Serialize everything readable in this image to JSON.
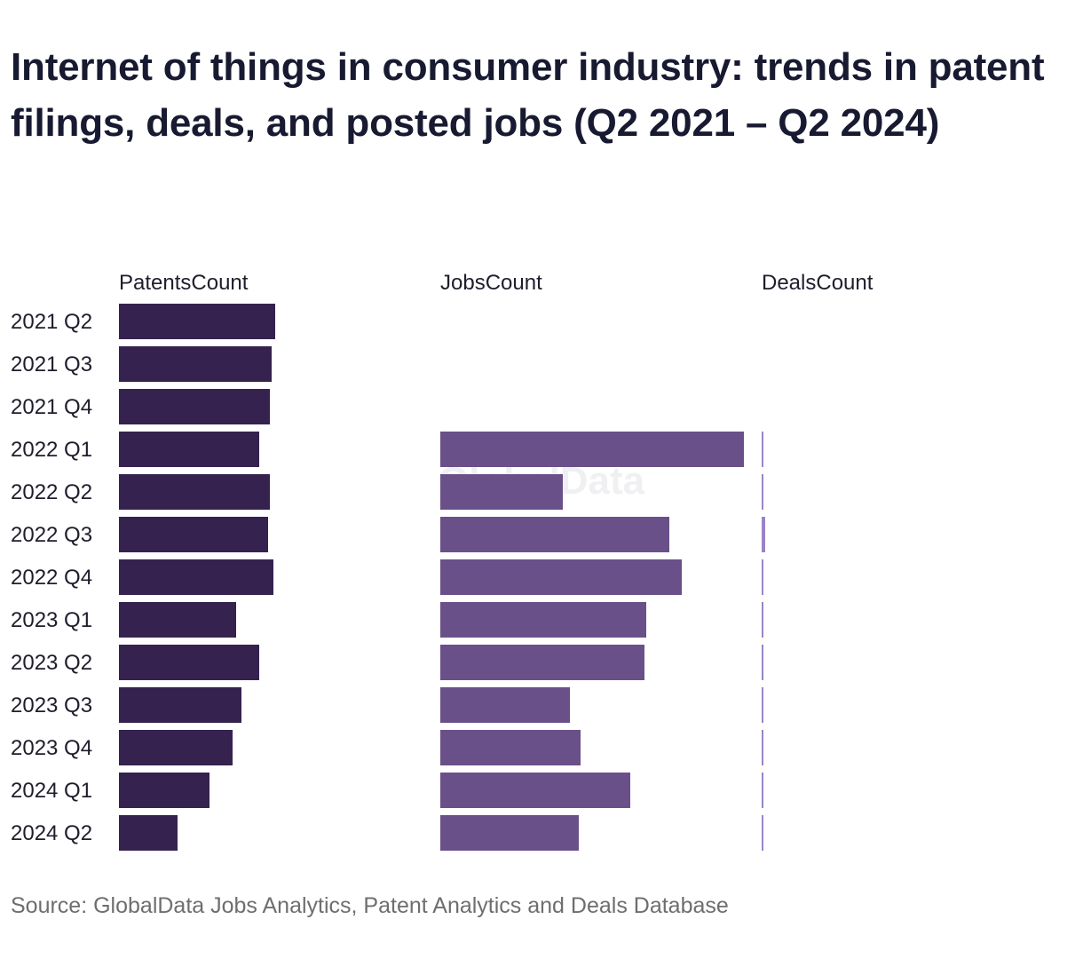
{
  "chart_data": {
    "type": "bar",
    "orientation": "horizontal",
    "title": "Internet of things in consumer industry: trends in patent filings, deals, and posted jobs (Q2 2021 – Q2 2024)",
    "source": "Source: GlobalData Jobs Analytics, Patent Analytics and Deals Database",
    "watermark": "GlobalData",
    "categories": [
      "2021 Q2",
      "2021 Q3",
      "2021 Q4",
      "2022 Q1",
      "2022 Q2",
      "2022 Q3",
      "2022 Q4",
      "2023 Q1",
      "2023 Q2",
      "2023 Q3",
      "2023 Q4",
      "2024 Q1",
      "2024 Q2"
    ],
    "series": [
      {
        "name": "PatentsCount",
        "color": "#35224f",
        "values": [
          88,
          86,
          85,
          79,
          85,
          84,
          87,
          66,
          79,
          69,
          64,
          51,
          33
        ]
      },
      {
        "name": "JobsCount",
        "color": "#6a5089",
        "values": [
          null,
          null,
          null,
          171,
          69,
          129,
          136,
          116,
          115,
          73,
          79,
          107,
          78
        ]
      },
      {
        "name": "DealsCount",
        "color": "#9a84c6",
        "values": [
          null,
          null,
          null,
          1,
          1,
          2,
          1,
          1,
          1,
          1,
          1,
          1,
          1
        ]
      }
    ],
    "legend": "none",
    "grid": false
  }
}
